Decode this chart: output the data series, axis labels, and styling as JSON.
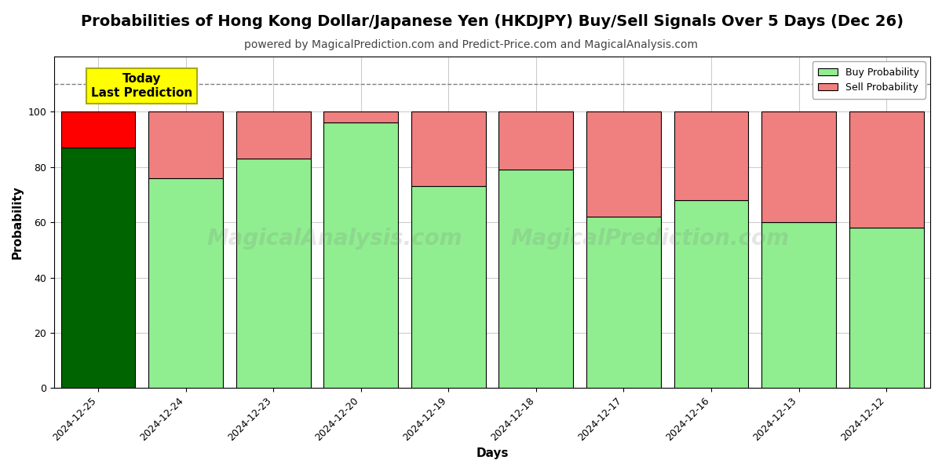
{
  "title": "Probabilities of Hong Kong Dollar/Japanese Yen (HKDJPY) Buy/Sell Signals Over 5 Days (Dec 26)",
  "subtitle": "powered by MagicalPrediction.com and Predict-Price.com and MagicalAnalysis.com",
  "xlabel": "Days",
  "ylabel": "Probability",
  "categories": [
    "2024-12-25",
    "2024-12-24",
    "2024-12-23",
    "2024-12-20",
    "2024-12-19",
    "2024-12-18",
    "2024-12-17",
    "2024-12-16",
    "2024-12-13",
    "2024-12-12"
  ],
  "buy_values": [
    87,
    76,
    83,
    96,
    73,
    79,
    62,
    68,
    60,
    58
  ],
  "sell_values": [
    13,
    24,
    17,
    4,
    27,
    21,
    38,
    32,
    40,
    42
  ],
  "today_buy_color": "#006400",
  "today_sell_color": "#ff0000",
  "buy_color": "#90ee90",
  "sell_color": "#f08080",
  "today_annotation_bg": "#ffff00",
  "today_annotation_text": "Today\nLast Prediction",
  "dashed_line_y": 110,
  "ylim": [
    0,
    120
  ],
  "yticks": [
    0,
    20,
    40,
    60,
    80,
    100
  ],
  "legend_buy": "Buy Probability",
  "legend_sell": "Sell Probability",
  "watermark1": "MagicalAnalysis.com",
  "watermark2": "MagicalPrediction.com",
  "background_color": "#ffffff",
  "grid_color": "#cccccc",
  "title_fontsize": 14,
  "subtitle_fontsize": 10,
  "bar_edge_color": "#000000"
}
